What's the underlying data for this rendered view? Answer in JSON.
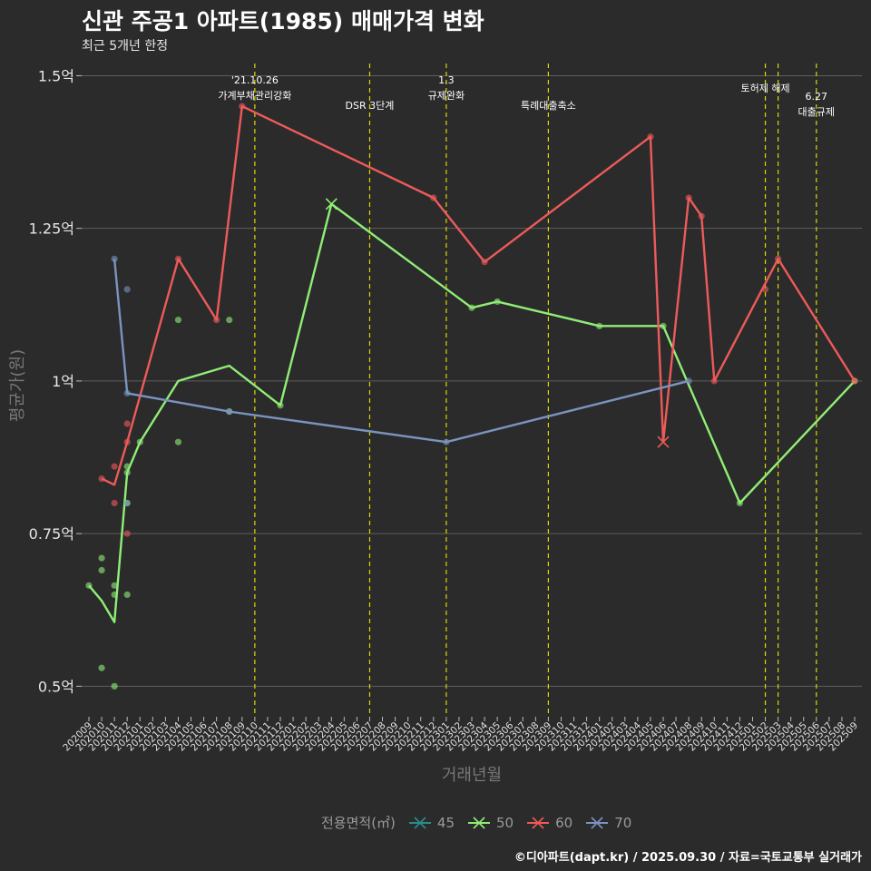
{
  "header": {
    "title": "신관 주공1 아파트(1985) 매매가격 변화",
    "subtitle": "최근 5개년 한정"
  },
  "caption": "©디아파트(dapt.kr) / 2025.09.30 / 자료=국토교통부 실거래가",
  "legend": {
    "title": "전용면적(㎡)",
    "items": [
      {
        "label": "45",
        "color": "#2a8c8c"
      },
      {
        "label": "50",
        "color": "#90ee76"
      },
      {
        "label": "60",
        "color": "#ee5a5a"
      },
      {
        "label": "70",
        "color": "#7a94c0"
      }
    ]
  },
  "chart_data": {
    "type": "line",
    "xlabel": "거래년월",
    "ylabel": "평균가(원)",
    "ylim": [
      0.45,
      1.52
    ],
    "yticks": [
      0.5,
      0.75,
      1.0,
      1.25,
      1.5
    ],
    "ytick_labels": [
      "0.5억",
      "0.75억",
      "1억",
      "1.25억",
      "1.5억"
    ],
    "categories": [
      "202009",
      "202010",
      "202011",
      "202012",
      "202101",
      "202102",
      "202103",
      "202104",
      "202105",
      "202106",
      "202107",
      "202108",
      "202109",
      "202110",
      "202111",
      "202112",
      "202201",
      "202202",
      "202203",
      "202204",
      "202205",
      "202206",
      "202207",
      "202208",
      "202209",
      "202210",
      "202211",
      "202212",
      "202301",
      "202302",
      "202303",
      "202304",
      "202305",
      "202306",
      "202307",
      "202308",
      "202309",
      "202310",
      "202311",
      "202312",
      "202401",
      "202402",
      "202403",
      "202404",
      "202405",
      "202406",
      "202407",
      "202408",
      "202409",
      "202410",
      "202411",
      "202412",
      "202501",
      "202502",
      "202503",
      "202504",
      "202505",
      "202506",
      "202507",
      "202508",
      "202509"
    ],
    "series": [
      {
        "name": "45",
        "color": "#2a8c8c",
        "line": [],
        "points": [],
        "cancelled": []
      },
      {
        "name": "50",
        "color": "#90ee76",
        "line": [
          [
            0,
            0.665
          ],
          [
            1,
            0.64
          ],
          [
            2,
            0.605
          ],
          [
            3,
            0.85
          ],
          [
            4,
            0.9
          ],
          [
            7,
            1.0
          ],
          [
            11,
            1.025
          ],
          [
            15,
            0.96
          ],
          [
            19,
            1.29
          ],
          [
            30,
            1.12
          ],
          [
            32,
            1.13
          ],
          [
            40,
            1.09
          ],
          [
            45,
            1.09
          ],
          [
            51,
            0.8
          ],
          [
            60,
            1.0
          ]
        ],
        "points": [
          [
            0,
            0.665
          ],
          [
            1,
            0.71
          ],
          [
            1,
            0.69
          ],
          [
            1,
            0.53
          ],
          [
            2,
            0.665
          ],
          [
            2,
            0.65
          ],
          [
            2,
            0.5
          ],
          [
            3,
            0.86
          ],
          [
            3,
            0.85
          ],
          [
            3,
            0.65
          ],
          [
            3,
            0.8
          ],
          [
            4,
            0.9
          ],
          [
            7,
            1.1
          ],
          [
            7,
            0.9
          ],
          [
            11,
            1.1
          ],
          [
            11,
            0.95
          ],
          [
            15,
            0.96
          ],
          [
            30,
            1.12
          ],
          [
            32,
            1.13
          ],
          [
            40,
            1.09
          ],
          [
            45,
            1.09
          ],
          [
            51,
            0.8
          ],
          [
            60,
            1.0
          ]
        ],
        "cancelled": [
          [
            19,
            1.29
          ]
        ]
      },
      {
        "name": "60",
        "color": "#ee5a5a",
        "line": [
          [
            1,
            0.84
          ],
          [
            2,
            0.83
          ],
          [
            3,
            0.9
          ],
          [
            7,
            1.2
          ],
          [
            10,
            1.1
          ],
          [
            12,
            1.45
          ],
          [
            27,
            1.3
          ],
          [
            31,
            1.195
          ],
          [
            44,
            1.4
          ],
          [
            45,
            0.9
          ],
          [
            47,
            1.3
          ],
          [
            48,
            1.27
          ],
          [
            49,
            1.0
          ],
          [
            54,
            1.2
          ],
          [
            60,
            1.0
          ]
        ],
        "points": [
          [
            1,
            0.84
          ],
          [
            2,
            0.86
          ],
          [
            2,
            0.8
          ],
          [
            3,
            0.93
          ],
          [
            3,
            0.9
          ],
          [
            3,
            0.75
          ],
          [
            7,
            1.2
          ],
          [
            10,
            1.1
          ],
          [
            12,
            1.45
          ],
          [
            27,
            1.3
          ],
          [
            31,
            1.195
          ],
          [
            44,
            1.4
          ],
          [
            47,
            1.3
          ],
          [
            48,
            1.27
          ],
          [
            49,
            1.0
          ],
          [
            53,
            1.15
          ],
          [
            54,
            1.2
          ],
          [
            60,
            1.0
          ]
        ],
        "cancelled": [
          [
            45,
            0.9
          ]
        ]
      },
      {
        "name": "70",
        "color": "#7a94c0",
        "line": [
          [
            2,
            1.2
          ],
          [
            3,
            0.98
          ],
          [
            11,
            0.95
          ],
          [
            28,
            0.9
          ],
          [
            47,
            1.0
          ]
        ],
        "points": [
          [
            2,
            1.2
          ],
          [
            3,
            1.15
          ],
          [
            3,
            0.98
          ],
          [
            3,
            0.8
          ],
          [
            11,
            0.95
          ],
          [
            28,
            0.9
          ],
          [
            47,
            1.0
          ]
        ],
        "cancelled": []
      }
    ],
    "events": [
      {
        "x": 13,
        "lines": [
          "'21.10.26",
          "가계부채관리강화"
        ],
        "row": 0
      },
      {
        "x": 22,
        "lines": [
          "DSR 3단계"
        ],
        "row": 2
      },
      {
        "x": 28,
        "lines": [
          "1.3",
          "규제완화"
        ],
        "row": 0
      },
      {
        "x": 36,
        "lines": [
          "특례대출축소"
        ],
        "row": 2
      },
      {
        "x": 53,
        "lines": [
          "토허제 해제"
        ],
        "row": 1
      },
      {
        "x": 54,
        "lines": [],
        "row": 1
      },
      {
        "x": 57,
        "lines": [
          "6.27",
          "대출규제"
        ],
        "row": 3
      }
    ]
  }
}
